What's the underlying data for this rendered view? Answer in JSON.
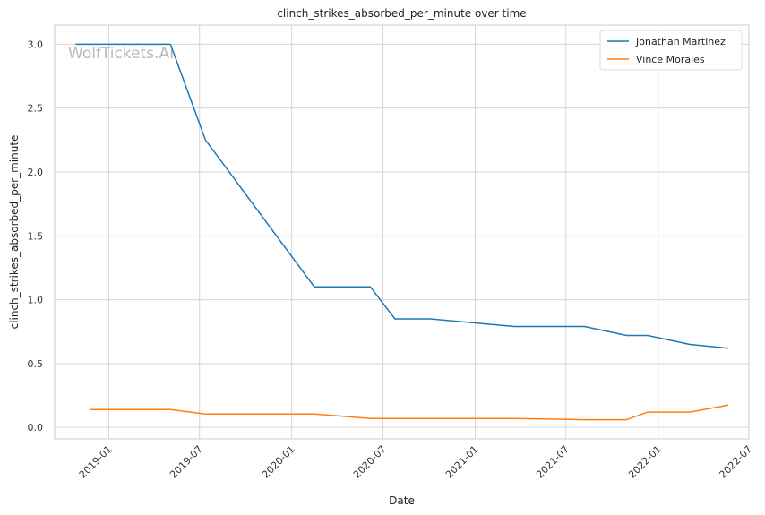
{
  "watermark": "WolfTickets.AI",
  "chart_data": {
    "type": "line",
    "title": "clinch_strikes_absorbed_per_minute over time",
    "xlabel": "Date",
    "ylabel": "clinch_strikes_absorbed_per_minute",
    "x_ticks": [
      "2019-01",
      "2019-07",
      "2020-01",
      "2020-07",
      "2021-01",
      "2021-07",
      "2022-01",
      "2022-07"
    ],
    "y_ticks": [
      "0.0",
      "0.5",
      "1.0",
      "1.5",
      "2.0",
      "2.5",
      "3.0"
    ],
    "xlim": [
      "2018-09-15",
      "2022-07-01"
    ],
    "ylim": [
      -0.09,
      3.15
    ],
    "grid": true,
    "legend_position": "top-right",
    "series": [
      {
        "name": "Jonathan Martinez",
        "color": "#1f77b4",
        "points": [
          {
            "x": "2018-10-27",
            "y": 3.0
          },
          {
            "x": "2019-05-04",
            "y": 3.0
          },
          {
            "x": "2019-07-13",
            "y": 2.25
          },
          {
            "x": "2020-02-15",
            "y": 1.1
          },
          {
            "x": "2020-06-06",
            "y": 1.1
          },
          {
            "x": "2020-07-25",
            "y": 0.85
          },
          {
            "x": "2020-10-03",
            "y": 0.85
          },
          {
            "x": "2021-03-20",
            "y": 0.79
          },
          {
            "x": "2021-08-07",
            "y": 0.79
          },
          {
            "x": "2021-10-30",
            "y": 0.72
          },
          {
            "x": "2021-12-11",
            "y": 0.72
          },
          {
            "x": "2022-03-05",
            "y": 0.65
          },
          {
            "x": "2022-05-21",
            "y": 0.62
          }
        ]
      },
      {
        "name": "Vince Morales",
        "color": "#ff7f0e",
        "points": [
          {
            "x": "2018-11-24",
            "y": 0.14
          },
          {
            "x": "2019-05-04",
            "y": 0.14
          },
          {
            "x": "2019-07-13",
            "y": 0.105
          },
          {
            "x": "2020-02-15",
            "y": 0.105
          },
          {
            "x": "2020-06-06",
            "y": 0.07
          },
          {
            "x": "2021-03-20",
            "y": 0.07
          },
          {
            "x": "2021-08-07",
            "y": 0.06
          },
          {
            "x": "2021-10-30",
            "y": 0.06
          },
          {
            "x": "2021-12-11",
            "y": 0.12
          },
          {
            "x": "2022-03-05",
            "y": 0.12
          },
          {
            "x": "2022-05-21",
            "y": 0.175
          }
        ]
      }
    ]
  }
}
